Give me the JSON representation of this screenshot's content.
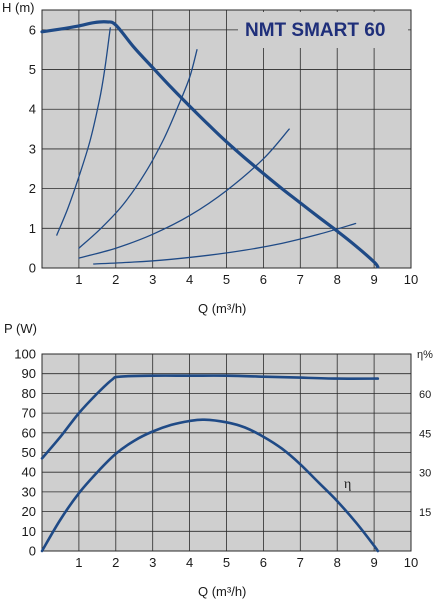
{
  "colors": {
    "plot_bg": "#cfcfcf",
    "grid": "#2a2a2a",
    "curve": "#1f4a86",
    "title": "#1f2f7a"
  },
  "chart_data": [
    {
      "type": "line",
      "title": "NMT SMART 60",
      "xlabel": "Q (m³/h)",
      "ylabel": "H (m)",
      "xlim": [
        0,
        10
      ],
      "ylim": [
        0,
        6.5
      ],
      "xticks": [
        "1",
        "2",
        "3",
        "4",
        "5",
        "6",
        "7",
        "8",
        "9",
        "10"
      ],
      "yticks": [
        "0",
        "1",
        "2",
        "3",
        "4",
        "5",
        "6"
      ],
      "grid": true,
      "series": [
        {
          "role": "max-curve",
          "width": 3.2,
          "points": [
            [
              0,
              5.95
            ],
            [
              0.5,
              6.02
            ],
            [
              1,
              6.1
            ],
            [
              1.4,
              6.18
            ],
            [
              1.75,
              6.2
            ],
            [
              2,
              6.12
            ],
            [
              2.5,
              5.55
            ],
            [
              3,
              5.05
            ],
            [
              3.5,
              4.55
            ],
            [
              4,
              4.08
            ],
            [
              4.5,
              3.62
            ],
            [
              5,
              3.18
            ],
            [
              5.5,
              2.77
            ],
            [
              6,
              2.38
            ],
            [
              6.5,
              2.0
            ],
            [
              7,
              1.64
            ],
            [
              7.5,
              1.28
            ],
            [
              8,
              0.93
            ],
            [
              8.5,
              0.56
            ],
            [
              9,
              0.15
            ],
            [
              9.1,
              0.03
            ]
          ]
        },
        {
          "role": "system-curve-1",
          "width": 1.3,
          "points": [
            [
              0.4,
              0.83
            ],
            [
              0.7,
              1.5
            ],
            [
              1.0,
              2.3
            ],
            [
              1.3,
              3.2
            ],
            [
              1.55,
              4.2
            ],
            [
              1.7,
              5.0
            ],
            [
              1.85,
              6.05
            ]
          ]
        },
        {
          "role": "system-curve-2",
          "width": 1.3,
          "points": [
            [
              1.0,
              0.5
            ],
            [
              1.6,
              1.0
            ],
            [
              2.2,
              1.6
            ],
            [
              2.8,
              2.4
            ],
            [
              3.3,
              3.25
            ],
            [
              3.7,
              4.1
            ],
            [
              4.0,
              4.8
            ],
            [
              4.2,
              5.5
            ]
          ]
        },
        {
          "role": "system-curve-3",
          "width": 1.3,
          "points": [
            [
              1.0,
              0.25
            ],
            [
              2,
              0.5
            ],
            [
              3,
              0.85
            ],
            [
              4,
              1.32
            ],
            [
              5,
              1.95
            ],
            [
              6,
              2.75
            ],
            [
              6.7,
              3.5
            ]
          ]
        },
        {
          "role": "system-curve-4",
          "width": 1.3,
          "points": [
            [
              1.4,
              0.1
            ],
            [
              2.5,
              0.15
            ],
            [
              3.5,
              0.22
            ],
            [
              4.5,
              0.32
            ],
            [
              5.5,
              0.45
            ],
            [
              6.5,
              0.62
            ],
            [
              7.5,
              0.85
            ],
            [
              8.5,
              1.12
            ]
          ]
        }
      ]
    },
    {
      "type": "line",
      "xlabel": "Q (m³/h)",
      "ylabel": "P (W)",
      "y2label": "η%",
      "xlim": [
        0,
        10
      ],
      "ylim": [
        0,
        100
      ],
      "y2lim": [
        0,
        75
      ],
      "xticks": [
        "1",
        "2",
        "3",
        "4",
        "5",
        "6",
        "7",
        "8",
        "9",
        "10"
      ],
      "yticks": [
        "0",
        "10",
        "20",
        "30",
        "40",
        "50",
        "60",
        "70",
        "80",
        "90",
        "100"
      ],
      "y2ticks": [
        "15",
        "30",
        "45",
        "60"
      ],
      "grid": true,
      "annotation": "η",
      "series": [
        {
          "role": "power",
          "axis": "left",
          "width": 2.6,
          "points": [
            [
              0,
              47
            ],
            [
              0.5,
              58
            ],
            [
              1,
              70
            ],
            [
              1.5,
              80
            ],
            [
              1.9,
              87
            ],
            [
              2.1,
              88.5
            ],
            [
              3,
              89
            ],
            [
              4,
              89
            ],
            [
              5,
              89
            ],
            [
              6,
              88.5
            ],
            [
              7,
              88
            ],
            [
              8,
              87.5
            ],
            [
              9.1,
              87.5
            ]
          ]
        },
        {
          "role": "efficiency",
          "axis": "right",
          "width": 2.6,
          "points": [
            [
              0,
              0
            ],
            [
              0.5,
              12
            ],
            [
              1,
              22
            ],
            [
              1.5,
              30
            ],
            [
              2,
              37
            ],
            [
              2.5,
              42
            ],
            [
              3,
              45.5
            ],
            [
              3.5,
              48
            ],
            [
              4,
              49.5
            ],
            [
              4.4,
              50
            ],
            [
              5,
              49
            ],
            [
              5.5,
              47
            ],
            [
              6,
              43.5
            ],
            [
              6.5,
              39
            ],
            [
              7,
              33
            ],
            [
              7.5,
              26
            ],
            [
              8,
              19
            ],
            [
              8.5,
              11
            ],
            [
              9,
              2
            ],
            [
              9.1,
              0
            ]
          ]
        }
      ]
    }
  ]
}
